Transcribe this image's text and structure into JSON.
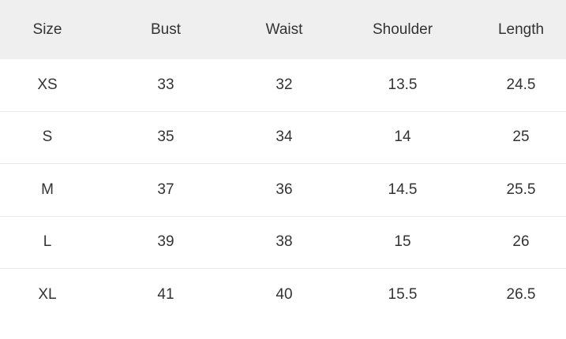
{
  "headers": [
    "Size",
    "Bust",
    "Waist",
    "Shoulder",
    "Length"
  ],
  "rows": [
    [
      "XS",
      "33",
      "32",
      "13.5",
      "24.5"
    ],
    [
      "S",
      "35",
      "34",
      "14",
      "25"
    ],
    [
      "M",
      "37",
      "36",
      "14.5",
      "25.5"
    ],
    [
      "L",
      "39",
      "38",
      "15",
      "26"
    ],
    [
      "XL",
      "41",
      "40",
      "15.5",
      "26.5"
    ]
  ]
}
